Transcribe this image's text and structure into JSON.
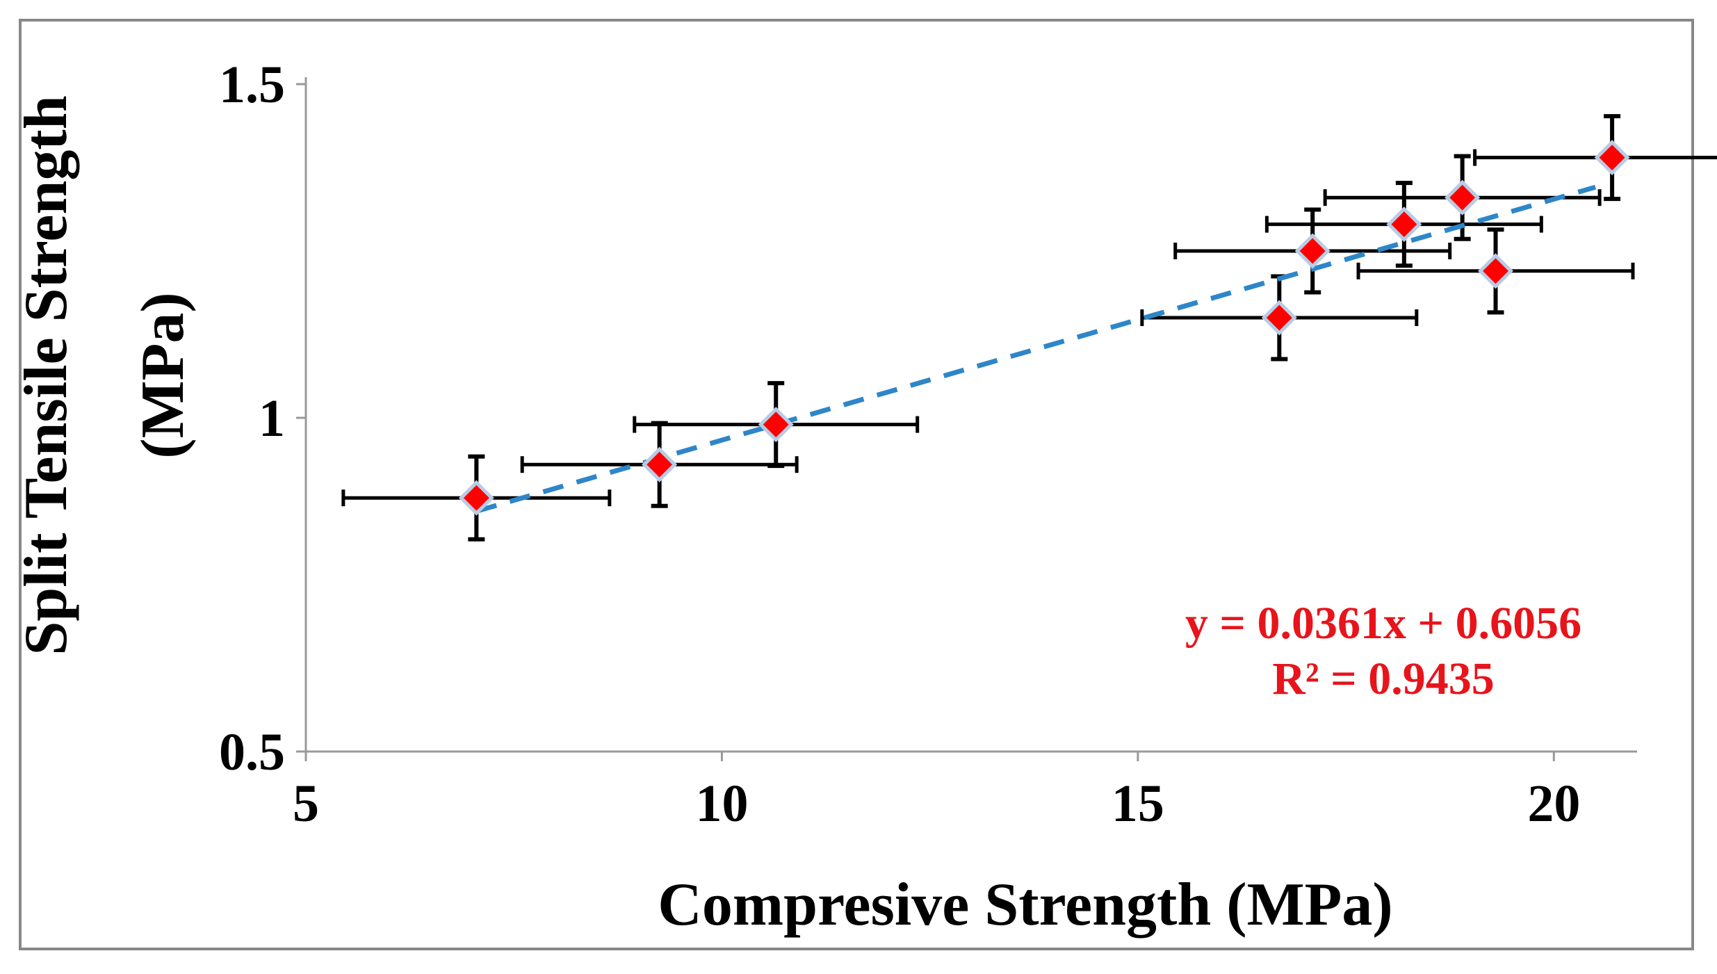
{
  "chart_data": {
    "type": "scatter",
    "title": "",
    "xlabel": "Compresive Strength (MPa)",
    "ylabel_line1": "Split Tensile Strength",
    "ylabel_line2": "(MPa)",
    "xlim": [
      5,
      21
    ],
    "ylim": [
      0.5,
      1.5
    ],
    "xticks": [
      5,
      10,
      15,
      20
    ],
    "xtick_labels": [
      "5",
      "10",
      "15",
      "20"
    ],
    "yticks": [
      0.5,
      1.0,
      1.5
    ],
    "ytick_labels": [
      "0.5",
      "1",
      "1.5"
    ],
    "grid": false,
    "points": [
      {
        "x": 7.05,
        "y": 0.88,
        "xerr": 1.6,
        "yerr": 0.062
      },
      {
        "x": 9.25,
        "y": 0.93,
        "xerr": 1.65,
        "yerr": 0.062
      },
      {
        "x": 10.65,
        "y": 0.99,
        "xerr": 1.7,
        "yerr": 0.062
      },
      {
        "x": 16.7,
        "y": 1.15,
        "xerr": 1.65,
        "yerr": 0.062
      },
      {
        "x": 17.1,
        "y": 1.25,
        "xerr": 1.65,
        "yerr": 0.062
      },
      {
        "x": 18.2,
        "y": 1.29,
        "xerr": 1.65,
        "yerr": 0.062
      },
      {
        "x": 18.9,
        "y": 1.33,
        "xerr": 1.65,
        "yerr": 0.062
      },
      {
        "x": 19.3,
        "y": 1.22,
        "xerr": 1.65,
        "yerr": 0.062
      },
      {
        "x": 20.7,
        "y": 1.39,
        "xerr": 1.65,
        "yerr": 0.062
      }
    ],
    "trendline": {
      "slope": 0.0361,
      "intercept": 0.6056,
      "x_start": 7.05,
      "x_end": 20.5,
      "style": "dashed"
    },
    "equation_line1": "y = 0.0361x + 0.6056",
    "equation_line2": "R² = 0.9435",
    "colors": {
      "marker_fill": "#ff0000",
      "marker_edge": "#b8cce4",
      "trendline": "#2e86c8",
      "error_bar": "#000000",
      "equation": "#e8141b",
      "axis": "#999999"
    }
  }
}
